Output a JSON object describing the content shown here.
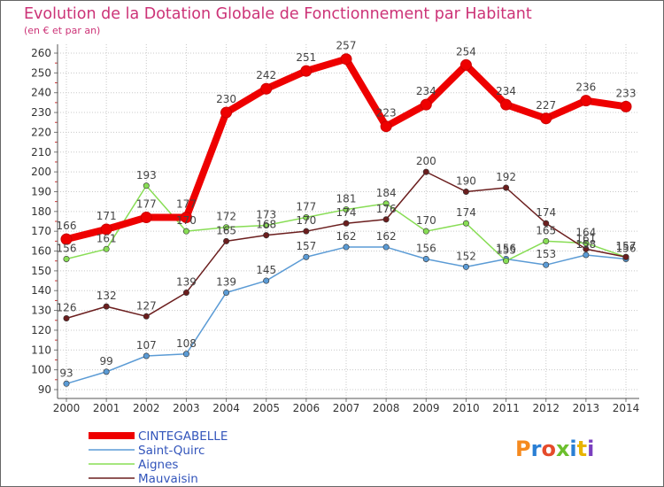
{
  "chart_data": {
    "type": "line",
    "title": "Evolution de la Dotation Globale de Fonctionnement par Habitant",
    "subtitle": "(en € et par an)",
    "x": [
      "2000",
      "2001",
      "2002",
      "2003",
      "2004",
      "2005",
      "2006",
      "2007",
      "2008",
      "2009",
      "2010",
      "2011",
      "2012",
      "2013",
      "2014"
    ],
    "ylim": [
      90,
      260
    ],
    "yticks": [
      90,
      100,
      110,
      120,
      130,
      140,
      150,
      160,
      170,
      180,
      190,
      200,
      210,
      220,
      230,
      240,
      250,
      260
    ],
    "grid": true,
    "legend_position": "bottom-left",
    "series": [
      {
        "name": "CINTEGABELLE",
        "color": "#ee0000",
        "values": [
          166,
          171,
          177,
          177,
          230,
          242,
          251,
          257,
          223,
          234,
          254,
          234,
          227,
          236,
          233
        ]
      },
      {
        "name": "Saint-Quirc",
        "color": "#5b9bd5",
        "values": [
          93,
          99,
          107,
          108,
          139,
          145,
          157,
          162,
          162,
          156,
          152,
          156,
          153,
          158,
          156
        ]
      },
      {
        "name": "Aignes",
        "color": "#88dd55",
        "values": [
          156,
          161,
          193,
          170,
          172,
          173,
          177,
          181,
          184,
          170,
          174,
          155,
          165,
          164,
          157
        ]
      },
      {
        "name": "Mauvaisin",
        "color": "#6b1e1e",
        "values": [
          126,
          132,
          127,
          139,
          165,
          168,
          170,
          174,
          176,
          200,
          190,
          192,
          174,
          161,
          157
        ]
      }
    ]
  },
  "logo": {
    "text": "Proxiti"
  },
  "colors": {
    "title": "#cc3377",
    "axis": "#333333",
    "grid": "#bbbbbb",
    "legend_text": "#3355bb"
  }
}
